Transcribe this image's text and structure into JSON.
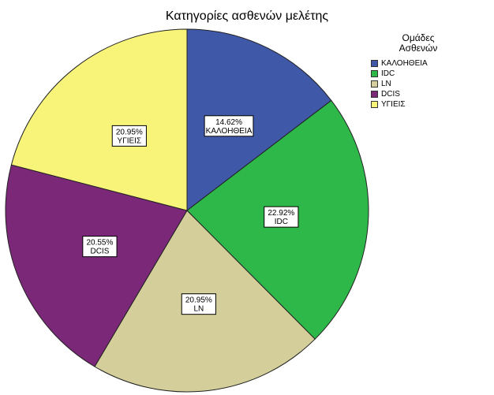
{
  "chart_data": {
    "type": "pie",
    "title": "Κατηγορίες ασθενών μελέτης",
    "legend_title": [
      "Ομάδες",
      "Ασθενών"
    ],
    "legend_position": "top-right",
    "start_angle_deg": 0,
    "direction": "clockwise",
    "slices": [
      {
        "label": "ΚΑΛΟΗΘΕΙΑ",
        "value": 14.62,
        "display": "14.62%",
        "color": "#3f58a8"
      },
      {
        "label": "IDC",
        "value": 22.92,
        "display": "22.92%",
        "color": "#2eb84a"
      },
      {
        "label": "LN",
        "value": 20.95,
        "display": "20.95%",
        "color": "#d4cf9a"
      },
      {
        "label": "DCIS",
        "value": 20.55,
        "display": "20.55%",
        "color": "#7b2879"
      },
      {
        "label": "ΥΓΙΕΙΣ",
        "value": 20.95,
        "display": "20.95%",
        "color": "#f8f47a"
      }
    ]
  }
}
